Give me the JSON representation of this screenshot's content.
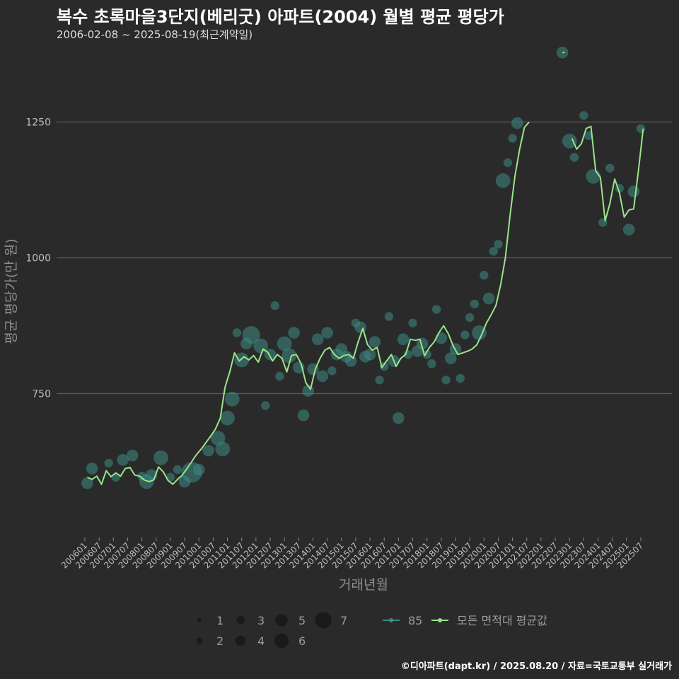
{
  "header": {
    "title": "복수 초록마을3단지(베리굿) 아파트(2004) 월별 평균 평당가",
    "subtitle": "2006-02-08 ~ 2025-08-19(최근계약일)"
  },
  "footer": {
    "credit": "©디아파트(dapt.kr) / 2025.08.20 / 자료=국토교통부 실거래가"
  },
  "colors": {
    "background": "#2a2a2b",
    "line": "#9be38a",
    "bubble": "#3d8b84"
  },
  "chart_data": {
    "type": "line",
    "title": "복수 초록마을3단지(베리굿) 아파트(2004) 월별 평균 평당가",
    "xlabel": "거래년월",
    "ylabel": "평균 평당가(만 원)",
    "ylim": [
      485,
      1390
    ],
    "yticks": [
      750,
      1000,
      1250
    ],
    "x_tick_labels": [
      "200601",
      "200607",
      "200701",
      "200707",
      "200801",
      "200807",
      "200901",
      "200907",
      "201001",
      "201007",
      "201101",
      "201107",
      "201201",
      "201207",
      "201301",
      "201307",
      "201401",
      "201407",
      "201501",
      "201507",
      "201601",
      "201607",
      "201701",
      "201707",
      "201801",
      "201807",
      "201901",
      "201907",
      "202001",
      "202007",
      "202101",
      "202107",
      "202201",
      "202207",
      "202301",
      "202307",
      "202401",
      "202407",
      "202501",
      "202507"
    ],
    "legend": {
      "size_label_entries": [
        "1",
        "2",
        "3",
        "4",
        "5",
        "6",
        "7"
      ],
      "series_entries": [
        "85",
        "모든 면적대 평균값"
      ]
    },
    "series": [
      {
        "name": "모든 면적대 평균값",
        "points": [
          [
            "2006-02",
            596
          ],
          [
            "2006-04",
            592
          ],
          [
            "2006-06",
            598
          ],
          [
            "2006-08",
            583
          ],
          [
            "2006-10",
            608
          ],
          [
            "2006-12",
            597
          ],
          [
            "2007-02",
            604
          ],
          [
            "2007-04",
            598
          ],
          [
            "2007-06",
            612
          ],
          [
            "2007-08",
            614
          ],
          [
            "2007-10",
            600
          ],
          [
            "2007-12",
            598
          ],
          [
            "2008-02",
            591
          ],
          [
            "2008-04",
            588
          ],
          [
            "2008-06",
            591
          ],
          [
            "2008-08",
            615
          ],
          [
            "2008-10",
            606
          ],
          [
            "2008-12",
            590
          ],
          [
            "2009-02",
            583
          ],
          [
            "2009-04",
            592
          ],
          [
            "2009-06",
            600
          ],
          [
            "2009-08",
            612
          ],
          [
            "2009-10",
            625
          ],
          [
            "2009-12",
            638
          ],
          [
            "2010-02",
            648
          ],
          [
            "2010-04",
            660
          ],
          [
            "2010-06",
            672
          ],
          [
            "2010-08",
            685
          ],
          [
            "2010-10",
            705
          ],
          [
            "2010-12",
            762
          ],
          [
            "2011-02",
            790
          ],
          [
            "2011-04",
            825
          ],
          [
            "2011-06",
            810
          ],
          [
            "2011-08",
            818
          ],
          [
            "2011-10",
            812
          ],
          [
            "2011-12",
            820
          ],
          [
            "2012-02",
            808
          ],
          [
            "2012-04",
            832
          ],
          [
            "2012-06",
            826
          ],
          [
            "2012-08",
            810
          ],
          [
            "2012-10",
            822
          ],
          [
            "2012-12",
            815
          ],
          [
            "2013-02",
            790
          ],
          [
            "2013-04",
            820
          ],
          [
            "2013-06",
            822
          ],
          [
            "2013-08",
            805
          ],
          [
            "2013-10",
            770
          ],
          [
            "2013-12",
            758
          ],
          [
            "2014-02",
            795
          ],
          [
            "2014-04",
            815
          ],
          [
            "2014-06",
            830
          ],
          [
            "2014-08",
            835
          ],
          [
            "2014-10",
            822
          ],
          [
            "2014-12",
            815
          ],
          [
            "2015-02",
            820
          ],
          [
            "2015-04",
            822
          ],
          [
            "2015-06",
            815
          ],
          [
            "2015-08",
            845
          ],
          [
            "2015-10",
            870
          ],
          [
            "2015-12",
            840
          ],
          [
            "2016-02",
            830
          ],
          [
            "2016-04",
            835
          ],
          [
            "2016-06",
            798
          ],
          [
            "2016-08",
            810
          ],
          [
            "2016-10",
            822
          ],
          [
            "2016-12",
            800
          ],
          [
            "2017-02",
            815
          ],
          [
            "2017-04",
            822
          ],
          [
            "2017-06",
            850
          ],
          [
            "2017-08",
            848
          ],
          [
            "2017-10",
            850
          ],
          [
            "2017-12",
            820
          ],
          [
            "2018-02",
            835
          ],
          [
            "2018-04",
            845
          ],
          [
            "2018-06",
            862
          ],
          [
            "2018-08",
            875
          ],
          [
            "2018-10",
            860
          ],
          [
            "2018-12",
            838
          ],
          [
            "2019-02",
            822
          ],
          [
            "2019-04",
            825
          ],
          [
            "2019-06",
            828
          ],
          [
            "2019-08",
            832
          ],
          [
            "2019-10",
            840
          ],
          [
            "2019-12",
            858
          ],
          [
            "2020-02",
            880
          ],
          [
            "2020-04",
            895
          ],
          [
            "2020-06",
            912
          ],
          [
            "2020-08",
            950
          ],
          [
            "2020-10",
            1000
          ],
          [
            "2020-12",
            1080
          ],
          [
            "2021-02",
            1150
          ],
          [
            "2021-04",
            1200
          ],
          [
            "2021-06",
            1240
          ],
          [
            "2021-08",
            1250
          ],
          null,
          [
            "2022-10",
            1378
          ],
          [
            "2022-11",
            1378
          ],
          null,
          [
            "2023-02",
            1220
          ],
          [
            "2023-04",
            1200
          ],
          [
            "2023-06",
            1210
          ],
          [
            "2023-08",
            1238
          ],
          [
            "2023-10",
            1242
          ],
          [
            "2023-12",
            1160
          ],
          [
            "2024-02",
            1148
          ],
          [
            "2024-04",
            1068
          ],
          [
            "2024-06",
            1100
          ],
          [
            "2024-08",
            1145
          ],
          [
            "2024-10",
            1120
          ],
          [
            "2024-12",
            1075
          ],
          [
            "2025-02",
            1088
          ],
          [
            "2025-04",
            1090
          ],
          [
            "2025-06",
            1160
          ],
          [
            "2025-08",
            1238
          ]
        ]
      },
      {
        "name": "85",
        "points": [
          [
            "2006-02",
            585,
            3
          ],
          [
            "2006-04",
            612,
            3
          ],
          [
            "2006-11",
            622,
            2
          ],
          [
            "2007-02",
            596,
            2
          ],
          [
            "2007-05",
            628,
            3
          ],
          [
            "2007-09",
            636,
            3
          ],
          [
            "2008-01",
            598,
            2
          ],
          [
            "2008-03",
            588,
            4
          ],
          [
            "2008-05",
            600,
            3
          ],
          [
            "2008-09",
            632,
            4
          ],
          [
            "2009-01",
            596,
            2
          ],
          [
            "2009-04",
            610,
            2
          ],
          [
            "2009-07",
            588,
            3
          ],
          [
            "2009-10",
            605,
            6
          ],
          [
            "2010-01",
            610,
            3
          ],
          [
            "2010-05",
            645,
            3
          ],
          [
            "2010-09",
            668,
            4
          ],
          [
            "2010-11",
            648,
            4
          ],
          [
            "2011-01",
            705,
            4
          ],
          [
            "2011-03",
            740,
            4
          ],
          [
            "2011-05",
            862,
            2
          ],
          [
            "2011-07",
            812,
            4
          ],
          [
            "2011-09",
            842,
            3
          ],
          [
            "2011-11",
            858,
            5
          ],
          [
            "2012-03",
            838,
            4
          ],
          [
            "2012-05",
            728,
            2
          ],
          [
            "2012-07",
            822,
            3
          ],
          [
            "2012-09",
            912,
            2
          ],
          [
            "2012-11",
            782,
            2
          ],
          [
            "2013-01",
            842,
            4
          ],
          [
            "2013-03",
            820,
            4
          ],
          [
            "2013-05",
            862,
            3
          ],
          [
            "2013-07",
            798,
            3
          ],
          [
            "2013-09",
            710,
            3
          ],
          [
            "2013-11",
            755,
            3
          ],
          [
            "2014-01",
            795,
            3
          ],
          [
            "2014-03",
            850,
            3
          ],
          [
            "2014-05",
            782,
            3
          ],
          [
            "2014-07",
            862,
            3
          ],
          [
            "2014-09",
            792,
            2
          ],
          [
            "2014-11",
            822,
            3
          ],
          [
            "2015-01",
            832,
            3
          ],
          [
            "2015-03",
            818,
            3
          ],
          [
            "2015-05",
            810,
            3
          ],
          [
            "2015-07",
            880,
            2
          ],
          [
            "2015-09",
            872,
            3
          ],
          [
            "2015-11",
            818,
            3
          ],
          [
            "2016-01",
            822,
            3
          ],
          [
            "2016-03",
            845,
            3
          ],
          [
            "2016-05",
            775,
            2
          ],
          [
            "2016-07",
            800,
            2
          ],
          [
            "2016-09",
            892,
            2
          ],
          [
            "2016-11",
            810,
            3
          ],
          [
            "2017-01",
            705,
            3
          ],
          [
            "2017-03",
            850,
            3
          ],
          [
            "2017-05",
            822,
            2
          ],
          [
            "2017-07",
            880,
            2
          ],
          [
            "2017-09",
            828,
            3
          ],
          [
            "2017-11",
            842,
            3
          ],
          [
            "2018-01",
            822,
            2
          ],
          [
            "2018-03",
            805,
            2
          ],
          [
            "2018-05",
            905,
            2
          ],
          [
            "2018-07",
            852,
            3
          ],
          [
            "2018-09",
            775,
            2
          ],
          [
            "2018-11",
            815,
            3
          ],
          [
            "2019-01",
            832,
            3
          ],
          [
            "2019-03",
            778,
            2
          ],
          [
            "2019-05",
            858,
            2
          ],
          [
            "2019-07",
            890,
            2
          ],
          [
            "2019-09",
            915,
            2
          ],
          [
            "2019-11",
            862,
            4
          ],
          [
            "2020-01",
            968,
            2
          ],
          [
            "2020-03",
            925,
            3
          ],
          [
            "2020-05",
            1012,
            2
          ],
          [
            "2020-07",
            1025,
            2
          ],
          [
            "2020-09",
            1142,
            4
          ],
          [
            "2020-11",
            1175,
            2
          ],
          [
            "2021-01",
            1220,
            2
          ],
          [
            "2021-03",
            1248,
            3
          ],
          [
            "2022-10",
            1378,
            3
          ],
          [
            "2023-01",
            1215,
            4
          ],
          [
            "2023-03",
            1185,
            2
          ],
          [
            "2023-07",
            1262,
            2
          ],
          [
            "2023-09",
            1225,
            2
          ],
          [
            "2023-11",
            1150,
            4
          ],
          [
            "2024-03",
            1065,
            2
          ],
          [
            "2024-06",
            1165,
            2
          ],
          [
            "2024-10",
            1128,
            2
          ],
          [
            "2025-02",
            1052,
            3
          ],
          [
            "2025-04",
            1122,
            3
          ],
          [
            "2025-07",
            1238,
            2
          ]
        ]
      }
    ]
  }
}
